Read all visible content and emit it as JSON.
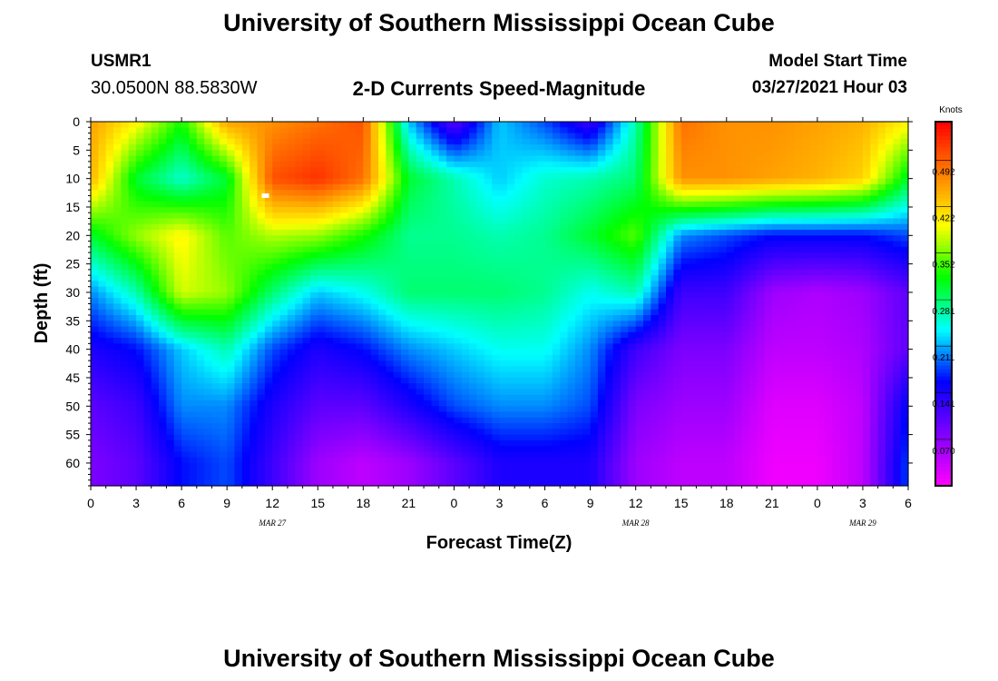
{
  "header": {
    "title_top": "University of Southern Mississippi Ocean Cube",
    "title_bottom": "University of Southern Mississippi Ocean Cube",
    "station_id": "USMR1",
    "station_coords": "30.0500N  88.5830W",
    "plot_title": "2-D Currents Speed-Magnitude",
    "model_start_label": "Model Start Time",
    "model_start_value": "03/27/2021 Hour 03"
  },
  "chart_data": {
    "type": "heatmap",
    "title": "2-D Currents Speed-Magnitude",
    "xlabel": "Forecast Time(Z)",
    "ylabel": "Depth (ft)",
    "x_tick_labels": [
      "0",
      "3",
      "6",
      "9",
      "12",
      "15",
      "18",
      "21",
      "0",
      "3",
      "6",
      "9",
      "12",
      "15",
      "18",
      "21",
      "0",
      "3",
      "6"
    ],
    "x_date_labels": [
      "MAR 27",
      "MAR 28",
      "MAR 29"
    ],
    "y_tick_labels": [
      "0",
      "5",
      "10",
      "15",
      "20",
      "25",
      "30",
      "35",
      "40",
      "45",
      "50",
      "55",
      "60"
    ],
    "ylim": [
      0,
      64
    ],
    "colorbar": {
      "unit": "Knots",
      "tick_labels": [
        "0.492",
        "0.422",
        "0.352",
        "0.281",
        "0.211",
        "0.141",
        "0.070"
      ],
      "range": [
        0.0,
        0.55
      ],
      "colors": [
        "#ff00ff",
        "#7f00ff",
        "#0000ff",
        "#00ffff",
        "#00ff00",
        "#ffff00",
        "#ff7f00",
        "#ff0000"
      ]
    },
    "x_hours": [
      0,
      3,
      6,
      9,
      12,
      15,
      18,
      21,
      24,
      27,
      30,
      33,
      36,
      39,
      42,
      45,
      48,
      51,
      54
    ],
    "depths_ft": [
      0,
      10,
      20,
      30,
      40,
      50,
      60
    ],
    "speed_knots": [
      [
        0.45,
        0.4,
        0.32,
        0.45,
        0.46,
        0.48,
        0.5,
        0.22,
        0.1,
        0.22,
        0.18,
        0.12,
        0.26,
        0.48,
        0.46,
        0.46,
        0.45,
        0.44,
        0.4
      ],
      [
        0.44,
        0.3,
        0.25,
        0.3,
        0.5,
        0.52,
        0.48,
        0.3,
        0.26,
        0.22,
        0.25,
        0.26,
        0.28,
        0.46,
        0.46,
        0.45,
        0.44,
        0.42,
        0.3
      ],
      [
        0.3,
        0.36,
        0.4,
        0.34,
        0.37,
        0.36,
        0.32,
        0.27,
        0.27,
        0.26,
        0.27,
        0.3,
        0.34,
        0.2,
        0.18,
        0.16,
        0.16,
        0.16,
        0.18
      ],
      [
        0.2,
        0.26,
        0.38,
        0.36,
        0.28,
        0.22,
        0.24,
        0.28,
        0.28,
        0.28,
        0.27,
        0.24,
        0.26,
        0.12,
        0.12,
        0.06,
        0.05,
        0.06,
        0.1
      ],
      [
        0.14,
        0.16,
        0.22,
        0.26,
        0.18,
        0.14,
        0.16,
        0.2,
        0.22,
        0.24,
        0.24,
        0.2,
        0.12,
        0.08,
        0.08,
        0.04,
        0.04,
        0.05,
        0.1
      ],
      [
        0.1,
        0.12,
        0.2,
        0.2,
        0.14,
        0.1,
        0.1,
        0.14,
        0.18,
        0.2,
        0.2,
        0.18,
        0.08,
        0.06,
        0.06,
        0.02,
        0.02,
        0.04,
        0.16
      ],
      [
        0.08,
        0.1,
        0.16,
        0.18,
        0.12,
        0.06,
        0.04,
        0.06,
        0.1,
        0.14,
        0.14,
        0.14,
        0.06,
        0.04,
        0.04,
        0.01,
        0.01,
        0.04,
        0.18
      ]
    ]
  }
}
